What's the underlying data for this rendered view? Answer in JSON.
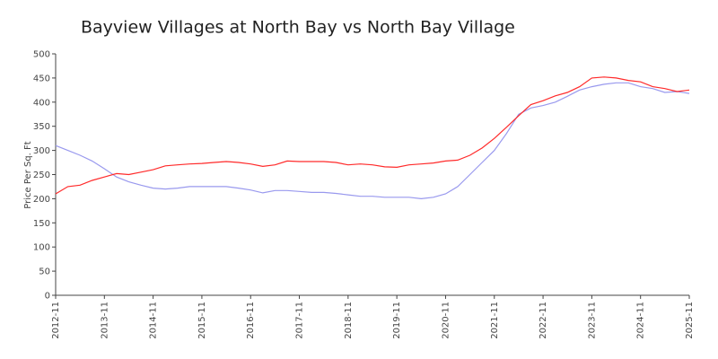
{
  "chart_data": {
    "type": "line",
    "title": "Bayview Villages at North Bay vs North Bay Village",
    "y_label": "Price Per Sq. Ft",
    "x": [
      "2012-11",
      "2013-02",
      "2013-05",
      "2013-08",
      "2013-11",
      "2014-02",
      "2014-05",
      "2014-08",
      "2014-11",
      "2015-02",
      "2015-05",
      "2015-08",
      "2015-11",
      "2016-02",
      "2016-05",
      "2016-08",
      "2016-11",
      "2017-02",
      "2017-05",
      "2017-08",
      "2017-11",
      "2018-02",
      "2018-05",
      "2018-08",
      "2018-11",
      "2019-02",
      "2019-05",
      "2019-08",
      "2019-11",
      "2020-02",
      "2020-05",
      "2020-08",
      "2020-11",
      "2021-02",
      "2021-05",
      "2021-08",
      "2021-11",
      "2022-02",
      "2022-05",
      "2022-08",
      "2022-11",
      "2023-02",
      "2023-05",
      "2023-08",
      "2023-11",
      "2024-02",
      "2024-05",
      "2024-08",
      "2024-11",
      "2025-02",
      "2025-05",
      "2025-08",
      "2025-11"
    ],
    "series": [
      {
        "color": "#ff2a2a",
        "values": [
          210,
          225,
          228,
          238,
          245,
          252,
          250,
          255,
          260,
          268,
          270,
          272,
          273,
          275,
          277,
          275,
          272,
          267,
          270,
          278,
          277,
          277,
          277,
          275,
          270,
          272,
          270,
          266,
          265,
          270,
          272,
          274,
          278,
          280,
          290,
          305,
          325,
          348,
          372,
          395,
          403,
          413,
          420,
          432,
          450,
          452,
          450,
          445,
          442,
          432,
          428,
          422,
          425
        ]
      },
      {
        "color": "#9999ee",
        "values": [
          310,
          300,
          290,
          278,
          262,
          245,
          235,
          228,
          222,
          220,
          222,
          225,
          225,
          225,
          225,
          222,
          218,
          212,
          217,
          217,
          215,
          213,
          213,
          211,
          208,
          205,
          205,
          203,
          203,
          203,
          200,
          203,
          210,
          225,
          250,
          275,
          300,
          335,
          375,
          388,
          393,
          400,
          412,
          425,
          432,
          437,
          440,
          440,
          432,
          428,
          420,
          422,
          418
        ]
      }
    ],
    "xticks": [
      "2012-11",
      "2013-11",
      "2014-11",
      "2015-11",
      "2016-11",
      "2017-11",
      "2018-11",
      "2019-11",
      "2020-11",
      "2021-11",
      "2022-11",
      "2023-11",
      "2024-11",
      "2025-11"
    ],
    "ylim": [
      0,
      500
    ],
    "yticks": [
      0,
      50,
      100,
      150,
      200,
      250,
      300,
      350,
      400,
      450,
      500
    ]
  }
}
